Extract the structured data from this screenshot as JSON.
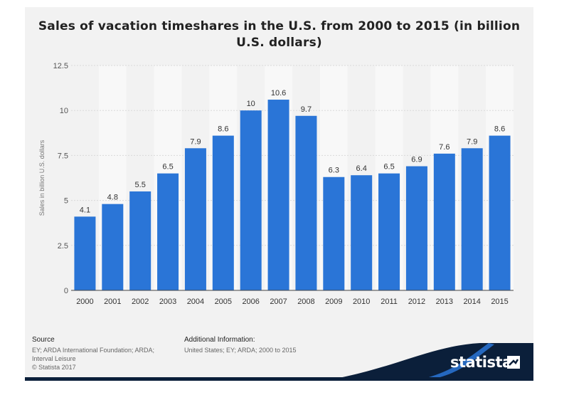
{
  "chart_data": {
    "type": "bar",
    "title": "Sales of vacation timeshares in the U.S. from 2000 to 2015 (in billion U.S. dollars)",
    "ylabel": "Sales in billion U.S. dollars",
    "xlabel": "",
    "ylim": [
      0,
      12.5
    ],
    "yticks": [
      "0",
      "2.5",
      "5",
      "7.5",
      "10",
      "12.5"
    ],
    "ytick_values": [
      0,
      2.5,
      5,
      7.5,
      10,
      12.5
    ],
    "categories": [
      "2000",
      "2001",
      "2002",
      "2003",
      "2004",
      "2005",
      "2006",
      "2007",
      "2008",
      "2009",
      "2010",
      "2011",
      "2012",
      "2013",
      "2014",
      "2015"
    ],
    "values": [
      4.1,
      4.8,
      5.5,
      6.5,
      7.9,
      8.6,
      10,
      10.6,
      9.7,
      6.3,
      6.4,
      6.5,
      6.9,
      7.6,
      7.9,
      8.6
    ],
    "value_labels": [
      "4.1",
      "4.8",
      "5.5",
      "6.5",
      "7.9",
      "8.6",
      "10",
      "10.6",
      "9.7",
      "6.3",
      "6.4",
      "6.5",
      "6.9",
      "7.6",
      "7.9",
      "8.6"
    ],
    "bar_color": "#2a75d7",
    "grid": true
  },
  "footer": {
    "source_heading": "Source",
    "source_text": "EY; ARDA International Foundation; ARDA;\nInterval Leisure\n© Statista 2017",
    "additional_heading": "Additional Information:",
    "additional_text": "United States; EY; ARDA; 2000 to 2015"
  },
  "brand": {
    "name": "statista",
    "color": "#0b1f3a"
  }
}
